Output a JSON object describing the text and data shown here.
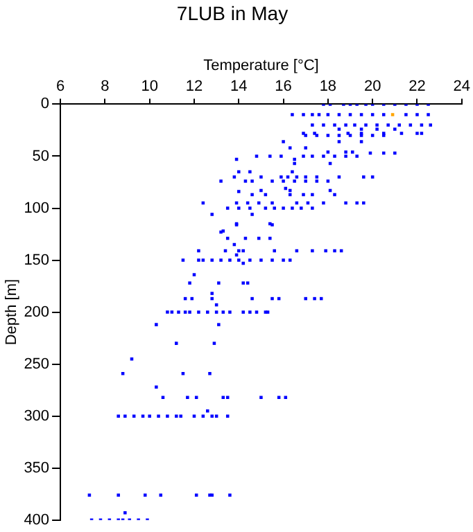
{
  "chart_data": {
    "type": "scatter",
    "title": "7LUB in May",
    "xlabel": "Temperature [°C]",
    "ylabel": "Depth [m]",
    "xlim": [
      6,
      24
    ],
    "xticks": [
      6,
      8,
      10,
      12,
      14,
      16,
      18,
      20,
      22,
      24
    ],
    "ylim": [
      400,
      0
    ],
    "yticks": [
      0,
      50,
      100,
      150,
      200,
      250,
      300,
      350,
      400
    ],
    "grid": false,
    "legend": false,
    "marker": "square",
    "series": [
      {
        "color": "#0000ff",
        "x": [
          17.8,
          18.1,
          18.7,
          19.0,
          19.3,
          19.7,
          20.0,
          20.5,
          21.0,
          21.5,
          22.0,
          22.5,
          16.4,
          16.9,
          17.3,
          17.6,
          18.0,
          18.5,
          19.0,
          19.5,
          20.0,
          20.5,
          21.5,
          22.0,
          22.5,
          17.3,
          17.8,
          18.3,
          18.8,
          19.2,
          19.7,
          20.2,
          20.7,
          21.2,
          21.7,
          22.2,
          22.6,
          18.5,
          19.5,
          20.2,
          21.0,
          16.9,
          17.4,
          18.9,
          19.5,
          20.5,
          21.3,
          22.0,
          22.2,
          17.0,
          17.5,
          18.0,
          18.5,
          19.0,
          19.5,
          20.0,
          20.5,
          16.0,
          18.5,
          19.5,
          16.3,
          17.0,
          18.0,
          18.8,
          19.1,
          19.9,
          20.5,
          21.0,
          14.8,
          15.4,
          15.9,
          16.9,
          17.3,
          17.8,
          18.3,
          18.8,
          19.3,
          13.9,
          16.5,
          16.5,
          18.1,
          14.0,
          14.5,
          16.4,
          13.8,
          15.0,
          15.9,
          16.2,
          16.6,
          17.0,
          17.5,
          18.5,
          19.6,
          20.0,
          13.2,
          14.3,
          14.6,
          15.5,
          16.0,
          16.5,
          17.0,
          17.5,
          18.0,
          14.0,
          15.0,
          16.1,
          16.3,
          18.1,
          14.6,
          15.2,
          16.3,
          16.9,
          17.3,
          18.3,
          12.4,
          13.9,
          14.4,
          14.9,
          15.5,
          16.6,
          17.1,
          17.8,
          18.8,
          19.3,
          19.6,
          13.5,
          14.0,
          14.5,
          15.2,
          15.6,
          16.0,
          16.4,
          16.8,
          17.3,
          12.8,
          14.6,
          13.9,
          15.5,
          13.2,
          13.9,
          15.4,
          13.3,
          13.5,
          14.3,
          14.9,
          15.4,
          13.8,
          12.2,
          13.4,
          14.0,
          14.2,
          15.6,
          16.6,
          17.3,
          17.9,
          18.3,
          18.6,
          13.9,
          11.5,
          12.2,
          12.4,
          12.8,
          13.2,
          13.6,
          14.0,
          14.5,
          15.0,
          15.5,
          16.0,
          16.3,
          14.2,
          12.0,
          11.8,
          13.1,
          14.2,
          14.4,
          12.8,
          11.6,
          11.9,
          12.8,
          14.6,
          15.5,
          15.8,
          17.0,
          17.4,
          17.7,
          13.0,
          10.8,
          11.0,
          11.3,
          11.6,
          11.8,
          12.2,
          12.6,
          13.0,
          13.3,
          13.6,
          14.2,
          14.5,
          14.8,
          15.2,
          15.3,
          10.3,
          13.1,
          11.2,
          12.9,
          9.2,
          8.8,
          11.5,
          12.7,
          10.3,
          10.6,
          11.7,
          12.1,
          13.3,
          13.5,
          15.0,
          15.8,
          16.1,
          12.6,
          8.6,
          8.9,
          9.3,
          9.7,
          10.0,
          10.4,
          10.8,
          11.2,
          11.4,
          12.0,
          12.4,
          12.8,
          13.0,
          13.5,
          7.3,
          8.6,
          9.8,
          10.5,
          12.1,
          12.7,
          12.8,
          13.6,
          8.9,
          7.4,
          7.8,
          8.2,
          8.6,
          8.8,
          9.1,
          9.5,
          9.9
        ],
        "values": [
          0,
          0,
          0,
          0,
          0,
          0,
          0,
          0,
          0,
          0,
          0,
          0,
          10,
          10,
          10,
          10,
          10,
          10,
          10,
          10,
          10,
          10,
          10,
          10,
          10,
          20,
          20,
          20,
          20,
          20,
          20,
          20,
          20,
          20,
          20,
          20,
          20,
          24,
          24,
          24,
          24,
          28,
          28,
          28,
          28,
          28,
          28,
          28,
          28,
          30,
          30,
          30,
          30,
          30,
          30,
          30,
          30,
          36,
          36,
          36,
          42,
          42,
          46,
          46,
          46,
          47,
          47,
          47,
          50,
          50,
          50,
          50,
          50,
          50,
          50,
          50,
          50,
          53,
          53,
          57,
          57,
          65,
          65,
          65,
          70,
          70,
          70,
          70,
          70,
          70,
          70,
          70,
          70,
          70,
          74,
          74,
          74,
          74,
          74,
          74,
          74,
          74,
          74,
          84,
          83,
          81,
          83,
          83,
          87,
          87,
          87,
          87,
          87,
          87,
          95,
          95,
          95,
          95,
          95,
          95,
          95,
          95,
          95,
          95,
          95,
          100,
          100,
          100,
          100,
          100,
          100,
          100,
          100,
          100,
          106,
          106,
          116,
          116,
          123,
          115,
          115,
          122,
          129,
          129,
          129,
          129,
          135,
          141,
          141,
          141,
          141,
          141,
          141,
          141,
          141,
          141,
          141,
          145,
          150,
          150,
          150,
          150,
          150,
          150,
          150,
          150,
          150,
          150,
          150,
          150,
          153,
          164,
          172,
          172,
          172,
          172,
          182,
          187,
          187,
          187,
          187,
          187,
          187,
          187,
          187,
          187,
          193,
          200,
          200,
          200,
          200,
          200,
          200,
          200,
          200,
          200,
          200,
          200,
          200,
          200,
          200,
          200,
          212,
          212,
          230,
          230,
          245,
          259,
          259,
          259,
          272,
          282,
          282,
          282,
          282,
          282,
          282,
          282,
          282,
          295,
          300,
          300,
          300,
          300,
          300,
          300,
          300,
          300,
          300,
          300,
          300,
          300,
          300,
          300,
          376,
          376,
          376,
          376,
          376,
          376,
          376,
          376,
          393,
          400,
          400,
          400,
          400,
          400,
          400,
          400,
          400
        ]
      },
      {
        "color": "#ffa500",
        "x": [
          20.9
        ],
        "values": [
          10
        ]
      }
    ]
  }
}
